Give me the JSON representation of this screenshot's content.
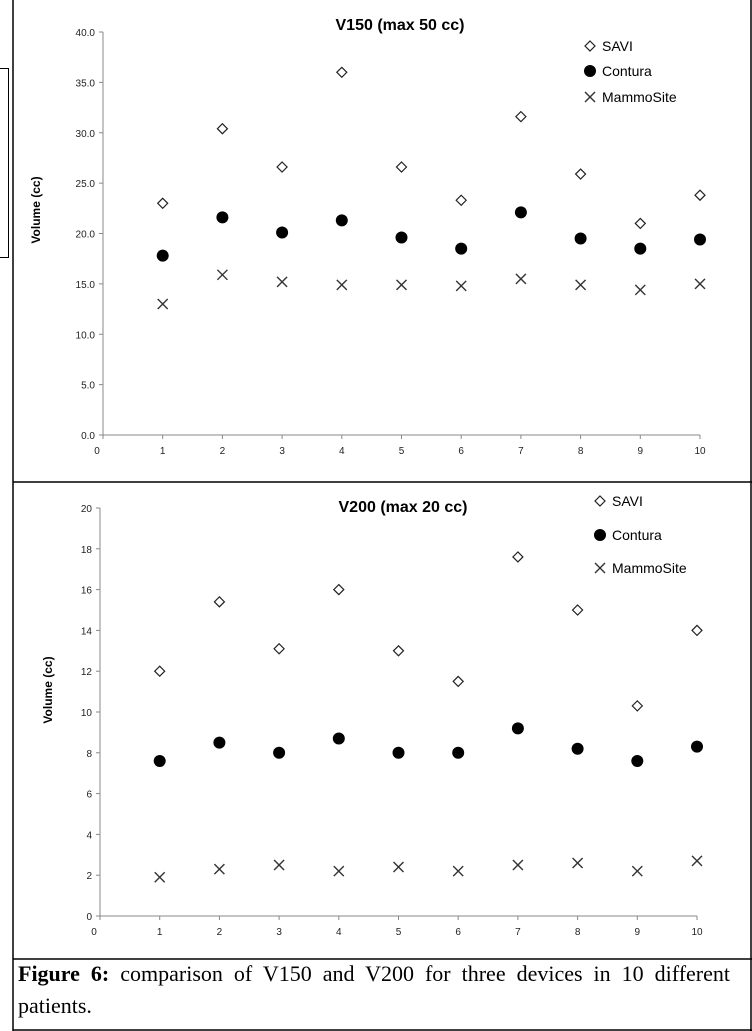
{
  "chart_data": [
    {
      "type": "scatter",
      "title": "V150 (max 50 cc)",
      "ylabel": "Volume (cc)",
      "xlabel": "",
      "xlim": [
        0,
        10
      ],
      "ylim": [
        0,
        40
      ],
      "x_ticks": [
        "0",
        "1",
        "2",
        "3",
        "4",
        "5",
        "6",
        "7",
        "8",
        "9",
        "10"
      ],
      "y_ticks": [
        "0.0",
        "5.0",
        "10.0",
        "15.0",
        "20.0",
        "25.0",
        "30.0",
        "35.0",
        "40.0"
      ],
      "legend_position": "top-right",
      "series": [
        {
          "name": "SAVI",
          "marker": "open-diamond",
          "x": [
            1,
            2,
            3,
            4,
            5,
            6,
            7,
            8,
            9,
            10
          ],
          "values": [
            23.0,
            30.4,
            26.6,
            36.0,
            26.6,
            23.3,
            31.6,
            25.9,
            21.0,
            23.8
          ]
        },
        {
          "name": "Contura",
          "marker": "filled-circle",
          "x": [
            1,
            2,
            3,
            4,
            5,
            6,
            7,
            8,
            9,
            10
          ],
          "values": [
            17.8,
            21.6,
            20.1,
            21.3,
            19.6,
            18.5,
            22.1,
            19.5,
            18.5,
            19.4
          ]
        },
        {
          "name": "MammoSite",
          "marker": "cross",
          "x": [
            1,
            2,
            3,
            4,
            5,
            6,
            7,
            8,
            9,
            10
          ],
          "values": [
            13.0,
            15.9,
            15.2,
            14.9,
            14.9,
            14.8,
            15.5,
            14.9,
            14.4,
            15.0
          ]
        }
      ]
    },
    {
      "type": "scatter",
      "title": "V200 (max 20 cc)",
      "ylabel": "Volume (cc)",
      "xlabel": "",
      "xlim": [
        0,
        10
      ],
      "ylim": [
        0,
        20
      ],
      "x_ticks": [
        "0",
        "1",
        "2",
        "3",
        "4",
        "5",
        "6",
        "7",
        "8",
        "9",
        "10"
      ],
      "y_ticks": [
        "0",
        "2",
        "4",
        "6",
        "8",
        "10",
        "12",
        "14",
        "16",
        "18",
        "20"
      ],
      "legend_position": "top-right",
      "series": [
        {
          "name": "SAVI",
          "marker": "open-diamond",
          "x": [
            1,
            2,
            3,
            4,
            5,
            6,
            7,
            8,
            9,
            10
          ],
          "values": [
            12.0,
            15.4,
            13.1,
            16.0,
            13.0,
            11.5,
            17.6,
            15.0,
            10.3,
            14.0
          ]
        },
        {
          "name": "Contura",
          "marker": "filled-circle",
          "x": [
            1,
            2,
            3,
            4,
            5,
            6,
            7,
            8,
            9,
            10
          ],
          "values": [
            7.6,
            8.5,
            8.0,
            8.7,
            8.0,
            8.0,
            9.2,
            8.2,
            7.6,
            8.3
          ]
        },
        {
          "name": "MammoSite",
          "marker": "cross",
          "x": [
            1,
            2,
            3,
            4,
            5,
            6,
            7,
            8,
            9,
            10
          ],
          "values": [
            1.9,
            2.3,
            2.5,
            2.2,
            2.4,
            2.2,
            2.5,
            2.6,
            2.2,
            2.7
          ]
        }
      ]
    }
  ],
  "legend_symbols": {
    "SAVI": "◇",
    "Contura": "●",
    "MammoSite": "×"
  },
  "caption": {
    "label": "Figure 6:",
    "text": " comparison of V150 and V200 for three devices in 10 different patients."
  }
}
